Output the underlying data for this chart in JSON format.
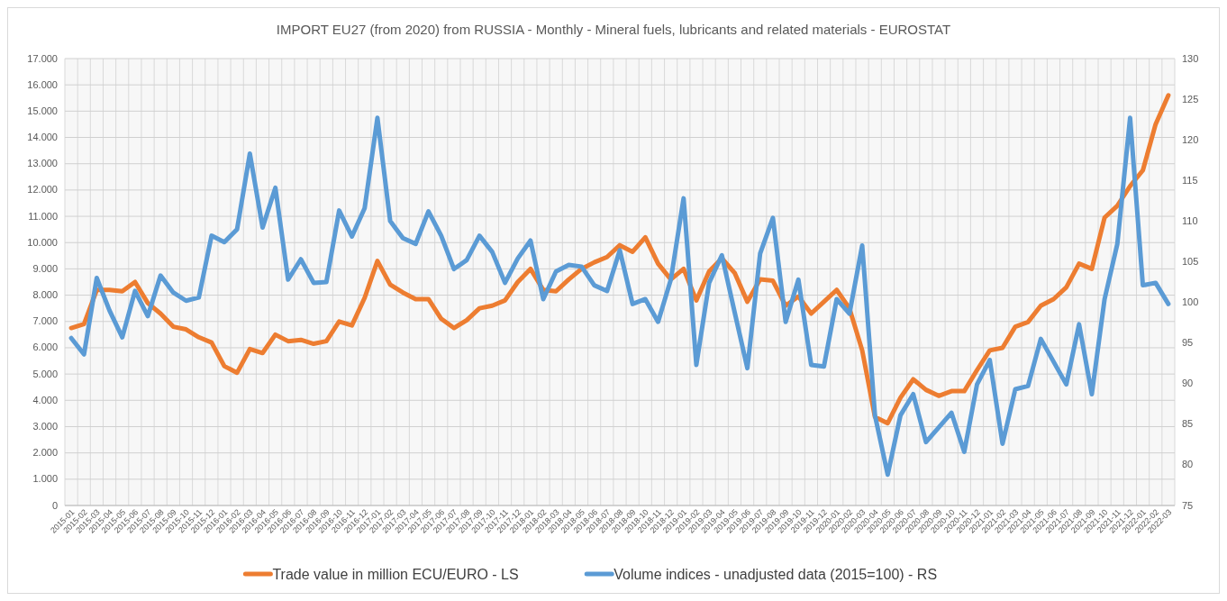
{
  "chart_data": {
    "type": "line",
    "title": "IMPORT EU27 (from 2020) from RUSSIA - Monthly - Mineral fuels, lubricants and related materials - EUROSTAT",
    "categories": [
      "2015-01",
      "2015-02",
      "2015-03",
      "2015-04",
      "2015-05",
      "2015-06",
      "2015-07",
      "2015-08",
      "2015-09",
      "2015-10",
      "2015-11",
      "2015-12",
      "2016-01",
      "2016-02",
      "2016-03",
      "2016-04",
      "2016-05",
      "2016-06",
      "2016-07",
      "2016-08",
      "2016-09",
      "2016-10",
      "2016-11",
      "2016-12",
      "2017-01",
      "2017-02",
      "2017-03",
      "2017-04",
      "2017-05",
      "2017-06",
      "2017-07",
      "2017-08",
      "2017-09",
      "2017-10",
      "2017-11",
      "2017-12",
      "2018-01",
      "2018-02",
      "2018-03",
      "2018-04",
      "2018-05",
      "2018-06",
      "2018-07",
      "2018-08",
      "2018-09",
      "2018-10",
      "2018-11",
      "2018-12",
      "2019-01",
      "2019-02",
      "2019-03",
      "2019-04",
      "2019-05",
      "2019-06",
      "2019-07",
      "2019-08",
      "2019-09",
      "2019-10",
      "2019-11",
      "2019-12",
      "2020-01",
      "2020-02",
      "2020-03",
      "2020-04",
      "2020-05",
      "2020-06",
      "2020-07",
      "2020-08",
      "2020-09",
      "2020-10",
      "2020-11",
      "2020-12",
      "2021-01",
      "2021-02",
      "2021-03",
      "2021-04",
      "2021-05",
      "2021-06",
      "2021-07",
      "2021-08",
      "2021-09",
      "2021-10",
      "2021-11",
      "2021-12",
      "2022-01",
      "2022-02",
      "2022-03"
    ],
    "series": [
      {
        "name": "Trade value in million ECU/EURO - LS",
        "color": "#ed7d31",
        "values": [
          6750,
          6900,
          8200,
          8200,
          8150,
          8500,
          7700,
          7300,
          6800,
          6700,
          6400,
          6200,
          5300,
          5050,
          5950,
          5800,
          6500,
          6250,
          6300,
          6150,
          6250,
          7000,
          6850,
          7900,
          9300,
          8400,
          8100,
          7850,
          7850,
          7100,
          6750,
          7050,
          7500,
          7600,
          7800,
          8500,
          9000,
          8200,
          8150,
          8600,
          9000,
          9250,
          9450,
          9900,
          9650,
          10200,
          9200,
          8600,
          9000,
          7800,
          8900,
          9400,
          8850,
          7750,
          8600,
          8550,
          7600,
          7950,
          7300,
          7750,
          8200,
          7500,
          5900,
          3370,
          3130,
          4100,
          4800,
          4400,
          4170,
          4350,
          4350,
          5150,
          5900,
          6000,
          6800,
          6980,
          7600,
          7850,
          8300,
          9200,
          9000,
          10950,
          11400,
          12150,
          12750,
          14500,
          15600
        ]
      },
      {
        "name": "Volume indices - unadjusted data (2015=100) - RS",
        "color": "#5b9bd5",
        "axis": "y2",
        "values": [
          95.6,
          93.6,
          103,
          99,
          95.7,
          101.4,
          98.3,
          103.3,
          101.2,
          100.2,
          100.6,
          108.2,
          107.4,
          109,
          118.3,
          109.2,
          114.1,
          102.8,
          105.3,
          102.4,
          102.5,
          111.3,
          108.1,
          111.6,
          122.7,
          110,
          107.9,
          107.2,
          111.2,
          108.2,
          104.1,
          105.2,
          108.2,
          106.2,
          102.4,
          105.4,
          107.6,
          100.4,
          103.8,
          104.6,
          104.4,
          102.1,
          101.4,
          106.4,
          99.8,
          100.4,
          97.6,
          102.8,
          112.8,
          92.3,
          102.4,
          105.8,
          98.8,
          91.9,
          106,
          110.4,
          97.6,
          102.8,
          92.3,
          92.1,
          100.4,
          98.6,
          107,
          86.1,
          78.8,
          86.1,
          88.7,
          82.8,
          84.6,
          86.4,
          81.6,
          89.9,
          92.9,
          82.6,
          89.3,
          89.7,
          95.5,
          92.7,
          89.9,
          97.3,
          88.7,
          100.4,
          107.2,
          122.7,
          102.1,
          102.4,
          99.8
        ]
      }
    ],
    "ylim": [
      0,
      17000
    ],
    "yticks": [
      0,
      {
        "value": 1000,
        "label": "1.000"
      },
      {
        "value": 2000,
        "label": "2.000"
      },
      {
        "value": 3000,
        "label": "3.000"
      },
      {
        "value": 4000,
        "label": "4.000"
      },
      {
        "value": 5000,
        "label": "5.000"
      },
      {
        "value": 6000,
        "label": "6.000"
      },
      {
        "value": 7000,
        "label": "7.000"
      },
      {
        "value": 8000,
        "label": "8.000"
      },
      {
        "value": 9000,
        "label": "9.000"
      },
      {
        "value": 10000,
        "label": "10.000"
      },
      {
        "value": 11000,
        "label": "11.000"
      },
      {
        "value": 12000,
        "label": "12.000"
      },
      {
        "value": 13000,
        "label": "13.000"
      },
      {
        "value": 14000,
        "label": "14.000"
      },
      {
        "value": 15000,
        "label": "15.000"
      },
      {
        "value": 16000,
        "label": "16.000"
      },
      {
        "value": 17000,
        "label": "17.000"
      }
    ],
    "y2lim": [
      75,
      130
    ],
    "y2ticks": [
      75,
      80,
      85,
      90,
      95,
      100,
      105,
      110,
      115,
      120,
      125,
      130
    ],
    "grid": true,
    "legend": "bottom",
    "marker": "none",
    "line_style": "solid"
  }
}
